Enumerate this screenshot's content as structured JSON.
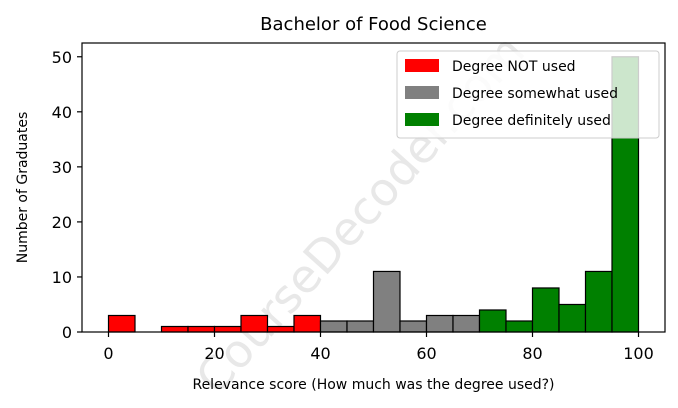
{
  "chart_data": {
    "type": "bar",
    "title": "Bachelor of Food Science",
    "xlabel": "Relevance score (How much was the degree used?)",
    "ylabel": "Number of Graduates",
    "xlim": [
      -5,
      105
    ],
    "ylim": [
      0,
      52.5
    ],
    "xticks": [
      0,
      20,
      40,
      60,
      80,
      100
    ],
    "yticks": [
      0,
      10,
      20,
      30,
      40,
      50
    ],
    "bin_width": 5,
    "grid": false,
    "legend_position": "top-right",
    "watermark": "CourseDecoder.com",
    "series": [
      {
        "name": "Degree NOT used",
        "color": "#ff0000",
        "bins": [
          {
            "start": 0,
            "count": 3
          },
          {
            "start": 5,
            "count": 0
          },
          {
            "start": 10,
            "count": 1
          },
          {
            "start": 15,
            "count": 1
          },
          {
            "start": 20,
            "count": 1
          },
          {
            "start": 25,
            "count": 3
          },
          {
            "start": 30,
            "count": 1
          },
          {
            "start": 35,
            "count": 3
          }
        ]
      },
      {
        "name": "Degree somewhat used",
        "color": "#808080",
        "bins": [
          {
            "start": 40,
            "count": 2
          },
          {
            "start": 45,
            "count": 2
          },
          {
            "start": 50,
            "count": 11
          },
          {
            "start": 55,
            "count": 2
          },
          {
            "start": 60,
            "count": 3
          },
          {
            "start": 65,
            "count": 3
          }
        ]
      },
      {
        "name": "Degree definitely used",
        "color": "#008000",
        "bins": [
          {
            "start": 70,
            "count": 4
          },
          {
            "start": 75,
            "count": 2
          },
          {
            "start": 80,
            "count": 8
          },
          {
            "start": 85,
            "count": 5
          },
          {
            "start": 90,
            "count": 11
          },
          {
            "start": 95,
            "count": 50
          }
        ]
      }
    ]
  }
}
